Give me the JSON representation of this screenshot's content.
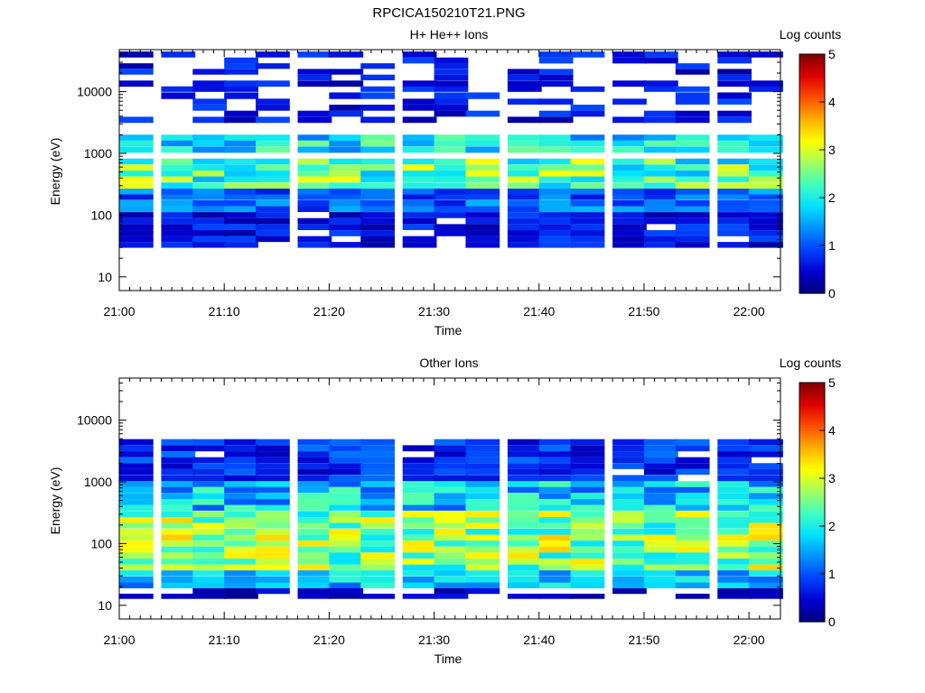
{
  "figure": {
    "title": "RPCICA150210T21.PNG",
    "colormap": [
      "#00007f",
      "#0000d0",
      "#0040ff",
      "#0090ff",
      "#00e0ff",
      "#40ffc0",
      "#a0ff60",
      "#ffff00",
      "#ffb000",
      "#ff5000",
      "#e00000",
      "#7f0000"
    ]
  },
  "chart_data": [
    {
      "type": "heatmap",
      "title": "H+ He++ Ions",
      "xlabel": "Time",
      "ylabel": "Energy (eV)",
      "yscale": "log",
      "ylim": [
        6,
        48000
      ],
      "xlim": [
        "21:00",
        "22:03"
      ],
      "x_ticks": [
        "21:00",
        "21:10",
        "21:20",
        "21:30",
        "21:40",
        "21:50",
        "22:00"
      ],
      "y_ticks": [
        "10",
        "100",
        "1000",
        "10000"
      ],
      "time_bins_start": [
        "21:00",
        "21:04",
        "21:07",
        "21:10",
        "21:13",
        "21:17",
        "21:20",
        "21:23",
        "21:27",
        "21:30",
        "21:33",
        "21:37",
        "21:40",
        "21:43",
        "21:47",
        "21:50",
        "21:53",
        "21:57",
        "22:00"
      ],
      "energy_channels_eV": [
        40000,
        32000,
        26000,
        21000,
        17000,
        13500,
        11000,
        8600,
        6900,
        5500,
        4400,
        3500,
        2800,
        2250,
        1800,
        1450,
        1150,
        920,
        740,
        590,
        470,
        380,
        300,
        240,
        195,
        155,
        125,
        100,
        80,
        64,
        51,
        41,
        33,
        26,
        21,
        17,
        14
      ],
      "log_counts_ranges": {
        "energy_eV": {
          "above_3000": [
            0.2,
            1.0
          ],
          "1000-2000": [
            1.2,
            2.6
          ],
          "250-800": [
            1.5,
            3.2
          ],
          "100-250": [
            0.6,
            1.6
          ],
          "30-100": [
            0.2,
            1.0
          ]
        }
      },
      "colorbar": {
        "label": "Log counts",
        "min": 0,
        "max": 5,
        "ticks": [
          "0",
          "1",
          "2",
          "3",
          "4",
          "5"
        ]
      }
    },
    {
      "type": "heatmap",
      "title": "Other Ions",
      "xlabel": "Time",
      "ylabel": "Energy (eV)",
      "yscale": "log",
      "ylim": [
        6,
        48000
      ],
      "xlim": [
        "21:00",
        "22:03"
      ],
      "x_ticks": [
        "21:00",
        "21:10",
        "21:20",
        "21:30",
        "21:40",
        "21:50",
        "22:00"
      ],
      "y_ticks": [
        "10",
        "100",
        "1000",
        "10000"
      ],
      "log_counts_ranges": {
        "energy_eV": {
          "1000-5000": [
            0.3,
            1.2
          ],
          "300-1000": [
            1.0,
            2.4
          ],
          "40-300": [
            1.8,
            3.5
          ],
          "20-40": [
            1.0,
            2.2
          ],
          "6-20": [
            0.1,
            0.6
          ]
        }
      },
      "colorbar": {
        "label": "Log counts",
        "min": 0,
        "max": 5,
        "ticks": [
          "0",
          "1",
          "2",
          "3",
          "4",
          "5"
        ]
      }
    }
  ]
}
